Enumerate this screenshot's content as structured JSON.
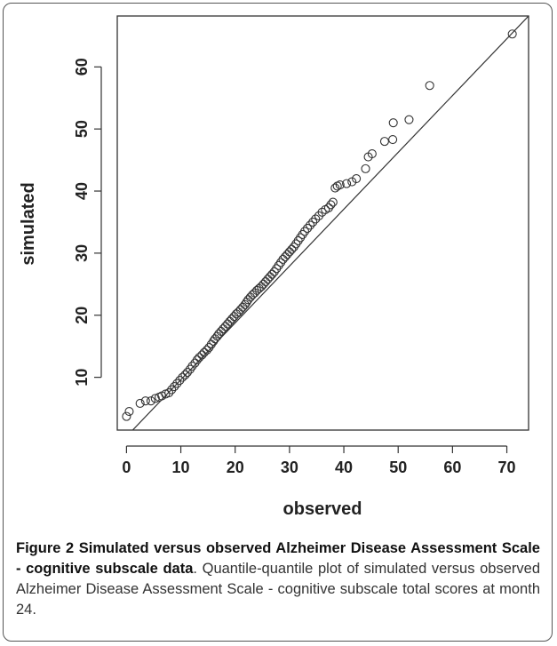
{
  "chart_data": {
    "type": "scatter",
    "title": "",
    "xlabel": "observed",
    "ylabel": "simulated",
    "xlim": [
      -1.7,
      74
    ],
    "ylim": [
      1.5,
      68.2
    ],
    "xticks": [
      0,
      10,
      20,
      30,
      40,
      50,
      60,
      70
    ],
    "yticks": [
      10,
      20,
      30,
      40,
      50,
      60
    ],
    "grid": false,
    "legend": "none",
    "reference_line": {
      "x": [
        -1.7,
        74
      ],
      "y": [
        -1.1,
        68.2
      ]
    },
    "points": [
      [
        0,
        3.7
      ],
      [
        0.5,
        4.5
      ],
      [
        2.5,
        5.8
      ],
      [
        3.5,
        6.2
      ],
      [
        4.5,
        6.2
      ],
      [
        5.3,
        6.6
      ],
      [
        6,
        6.8
      ],
      [
        6.5,
        7.0
      ],
      [
        7.2,
        7.3
      ],
      [
        7.8,
        7.5
      ],
      [
        8.3,
        8.0
      ],
      [
        8.8,
        8.5
      ],
      [
        9.3,
        9.0
      ],
      [
        9.8,
        9.5
      ],
      [
        10.3,
        10.0
      ],
      [
        10.8,
        10.4
      ],
      [
        11.2,
        10.8
      ],
      [
        11.7,
        11.3
      ],
      [
        12.1,
        11.8
      ],
      [
        12.6,
        12.3
      ],
      [
        13,
        12.8
      ],
      [
        13.4,
        13.2
      ],
      [
        13.9,
        13.6
      ],
      [
        14.3,
        14.0
      ],
      [
        14.8,
        14.4
      ],
      [
        15.2,
        14.8
      ],
      [
        15.6,
        15.3
      ],
      [
        16,
        15.8
      ],
      [
        16.3,
        16.2
      ],
      [
        16.7,
        16.6
      ],
      [
        17,
        17.0
      ],
      [
        17.4,
        17.4
      ],
      [
        17.8,
        17.8
      ],
      [
        18.2,
        18.2
      ],
      [
        18.6,
        18.6
      ],
      [
        19,
        19.0
      ],
      [
        19.4,
        19.4
      ],
      [
        19.8,
        19.8
      ],
      [
        20.2,
        20.2
      ],
      [
        20.6,
        20.5
      ],
      [
        21,
        20.9
      ],
      [
        21.4,
        21.3
      ],
      [
        21.8,
        21.7
      ],
      [
        22.1,
        22.1
      ],
      [
        22.4,
        22.5
      ],
      [
        22.8,
        22.9
      ],
      [
        23.2,
        23.3
      ],
      [
        23.6,
        23.6
      ],
      [
        24,
        24.0
      ],
      [
        24.4,
        24.3
      ],
      [
        24.8,
        24.6
      ],
      [
        25.2,
        25.0
      ],
      [
        25.6,
        25.4
      ],
      [
        26,
        25.8
      ],
      [
        26.4,
        26.2
      ],
      [
        26.8,
        26.6
      ],
      [
        27.2,
        27.0
      ],
      [
        27.6,
        27.5
      ],
      [
        28,
        28.0
      ],
      [
        28.4,
        28.5
      ],
      [
        28.8,
        29.0
      ],
      [
        29.2,
        29.4
      ],
      [
        29.6,
        29.8
      ],
      [
        30,
        30.2
      ],
      [
        30.4,
        30.6
      ],
      [
        30.8,
        31.0
      ],
      [
        31.2,
        31.5
      ],
      [
        31.6,
        32.0
      ],
      [
        32,
        32.5
      ],
      [
        32.4,
        33.0
      ],
      [
        32.8,
        33.5
      ],
      [
        33.3,
        34.0
      ],
      [
        33.8,
        34.5
      ],
      [
        34.3,
        35.0
      ],
      [
        34.8,
        35.5
      ],
      [
        35.4,
        36.0
      ],
      [
        36,
        36.6
      ],
      [
        36.6,
        37.0
      ],
      [
        37.2,
        37.3
      ],
      [
        37.6,
        37.8
      ],
      [
        38,
        38.2
      ],
      [
        38.4,
        40.5
      ],
      [
        38.8,
        40.8
      ],
      [
        39.3,
        41.0
      ],
      [
        40.5,
        41.2
      ],
      [
        41.5,
        41.5
      ],
      [
        42.3,
        42.0
      ],
      [
        44,
        43.6
      ],
      [
        44.5,
        45.5
      ],
      [
        45.2,
        46.0
      ],
      [
        47.5,
        48.0
      ],
      [
        49,
        48.3
      ],
      [
        49.1,
        51.0
      ],
      [
        52,
        51.5
      ],
      [
        55.8,
        57.0
      ],
      [
        71,
        65.3
      ]
    ]
  },
  "caption": {
    "label": "Figure 2",
    "title": "Simulated versus observed Alzheimer Disease Assessment Scale - cognitive subscale data",
    "text": ". Quantile-quantile plot of simulated versus observed Alzheimer Disease Assessment Scale - cognitive subscale total scores at month 24."
  }
}
